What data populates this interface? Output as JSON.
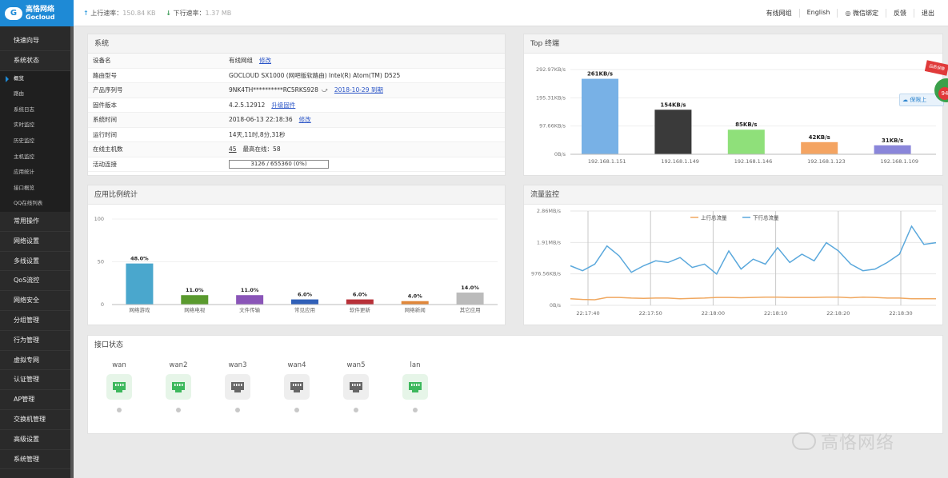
{
  "brand": {
    "name_cn": "高恪网络",
    "name_en": "Gocloud"
  },
  "rates": {
    "up_label": "上行速率：",
    "up_value": "150.84 KB",
    "down_label": "下行速率：",
    "down_value": "1.37 MB"
  },
  "topnav": [
    "有线网组",
    "English",
    "微信绑定",
    "反馈",
    "退出"
  ],
  "sidebar": {
    "top_items": [
      "快速向导",
      "系统状态"
    ],
    "sub_items": [
      "概览",
      "路由",
      "系统日志",
      "实时监控",
      "历史监控",
      "主机监控",
      "应用统计",
      "接口概览",
      "QQ在线列表"
    ],
    "active_sub": "概览",
    "bottom_items": [
      "常用操作",
      "网络设置",
      "多线设置",
      "QoS流控",
      "网络安全",
      "分组管理",
      "行为管理",
      "虚拟专网",
      "认证管理",
      "AP管理",
      "交换机管理",
      "高级设置",
      "系统管理"
    ]
  },
  "system": {
    "title": "系统",
    "rows": [
      {
        "label": "设备名",
        "value": "有线网组",
        "link": "修改"
      },
      {
        "label": "路由型号",
        "value": "GOCLOUD SX1000 (网吧版软路由) Intel(R) Atom(TM) D525",
        "link": ""
      },
      {
        "label": "产品序列号",
        "value": "9NK4TH**********RC5RKS928",
        "link": "2018-10-29 到期"
      },
      {
        "label": "固件版本",
        "value": "4.2.5.12912",
        "link": "升级固件"
      },
      {
        "label": "系统时间",
        "value": "2018-06-13 22:18:36",
        "link": "修改"
      },
      {
        "label": "运行时间",
        "value": "14天,11时,8分,31秒",
        "link": ""
      },
      {
        "label": "在线主机数",
        "value": "45",
        "extra": "最高在线：",
        "extra_value": "58"
      },
      {
        "label": "活动连接",
        "value": "3126 / 655360 (0%)",
        "link": ""
      }
    ]
  },
  "top_terminal": {
    "title": "Top 终端",
    "chart_data": {
      "type": "bar",
      "categories": [
        "192.168.1.151",
        "192.168.1.149",
        "192.168.1.146",
        "192.168.1.123",
        "192.168.1.109"
      ],
      "values": [
        261,
        154,
        85,
        42,
        31
      ],
      "value_labels": [
        "261KB/s",
        "154KB/s",
        "85KB/s",
        "42KB/s",
        "31KB/s"
      ],
      "colors": [
        "#78b1e6",
        "#3a3a3a",
        "#8fe07a",
        "#f4a462",
        "#8a86da"
      ],
      "y_ticks": [
        "292.97KB/s",
        "195.31KB/s",
        "97.66KB/s",
        "0B/s"
      ],
      "ylim": [
        0,
        292.97
      ]
    },
    "float_button": "保限上",
    "promo": "品质保障",
    "promo_badge": "94"
  },
  "app_stats": {
    "title": "应用比例统计",
    "chart_data": {
      "type": "bar",
      "categories": [
        "网络游戏",
        "网络电视",
        "文件传输",
        "常见应用",
        "软件更新",
        "网络新闻",
        "其它应用"
      ],
      "values": [
        48.0,
        11.0,
        11.0,
        6.0,
        6.0,
        4.0,
        14.0
      ],
      "value_labels": [
        "48.0%",
        "11.0%",
        "11.0%",
        "6.0%",
        "6.0%",
        "4.0%",
        "14.0%"
      ],
      "colors": [
        "#4aa7cd",
        "#5a9a2e",
        "#8a55b8",
        "#3060b8",
        "#b83038",
        "#e0873a",
        "#bbbbbb"
      ],
      "y_ticks": [
        "100",
        "50",
        "0"
      ],
      "ylim": [
        0,
        100
      ]
    }
  },
  "traffic": {
    "title": "流量监控",
    "chart_data": {
      "type": "line",
      "x_ticks": [
        "22:17:40",
        "22:17:50",
        "22:18:00",
        "22:18:10",
        "22:18:20",
        "22:18:30"
      ],
      "y_ticks": [
        "2.86MB/s",
        "1.91MB/s",
        "976.56KB/s",
        "0B/s"
      ],
      "ylim": [
        0,
        2.86
      ],
      "series": [
        {
          "name": "上行总流量",
          "color": "#f0a860",
          "values": [
            0.2,
            0.18,
            0.17,
            0.24,
            0.24,
            0.22,
            0.21,
            0.22,
            0.22,
            0.2,
            0.21,
            0.22,
            0.24,
            0.24,
            0.23,
            0.24,
            0.25,
            0.25,
            0.24,
            0.24,
            0.24,
            0.25,
            0.25,
            0.23,
            0.25,
            0.24,
            0.22,
            0.22,
            0.2,
            0.2,
            0.2
          ]
        },
        {
          "name": "下行总流量",
          "color": "#5aa8dc",
          "values": [
            1.2,
            1.05,
            1.25,
            1.8,
            1.5,
            1.0,
            1.2,
            1.35,
            1.3,
            1.45,
            1.15,
            1.25,
            0.95,
            1.65,
            1.1,
            1.4,
            1.25,
            1.75,
            1.3,
            1.55,
            1.35,
            1.9,
            1.65,
            1.25,
            1.05,
            1.1,
            1.3,
            1.55,
            2.4,
            1.85,
            1.9
          ]
        }
      ]
    }
  },
  "ports": {
    "title": "接口状态",
    "items": [
      {
        "name": "wan",
        "active": true
      },
      {
        "name": "wan2",
        "active": true
      },
      {
        "name": "wan3",
        "active": false
      },
      {
        "name": "wan4",
        "active": false
      },
      {
        "name": "wan5",
        "active": false
      },
      {
        "name": "lan",
        "active": true
      }
    ]
  },
  "watermark": "高恪网络"
}
